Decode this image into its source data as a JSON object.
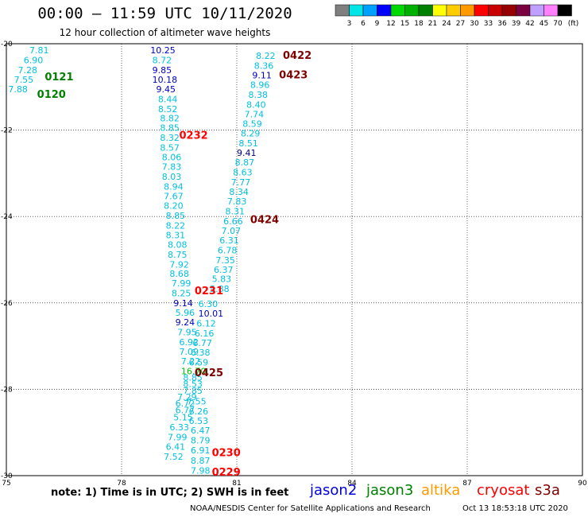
{
  "title": "00:00 – 11:59 UTC 10/11/2020",
  "subtitle": "12 hour collection of altimeter wave heights",
  "colorbar": {
    "labels": [
      "3",
      "6",
      "9",
      "12",
      "15",
      "18",
      "21",
      "24",
      "27",
      "30",
      "33",
      "36",
      "39",
      "42",
      "45",
      "70"
    ],
    "unit": "(ft)",
    "colors": [
      "#7f7f7f",
      "#00e5e5",
      "#00a0ff",
      "#0000ff",
      "#00d800",
      "#00b000",
      "#008000",
      "#ffff00",
      "#ffcc00",
      "#ff9900",
      "#ff0000",
      "#c80000",
      "#960000",
      "#7a0040",
      "#c0a0ff",
      "#ff80ff",
      "#000000"
    ]
  },
  "map": {
    "lon_range": [
      75,
      90
    ],
    "lat_range": [
      -30,
      -20
    ],
    "x_ticks": [
      "75",
      "78",
      "81",
      "84",
      "87",
      "90"
    ],
    "y_ticks": [
      "-20",
      "-22",
      "-24",
      "-26",
      "-28",
      "-30"
    ],
    "grid": true,
    "pass_labels": [
      {
        "text": "0422",
        "lon": 82.2,
        "lat": -20.35,
        "color": "#800000"
      },
      {
        "text": "0423",
        "lon": 82.1,
        "lat": -20.8,
        "color": "#800000"
      },
      {
        "text": "0121",
        "lon": 76.0,
        "lat": -20.85,
        "color": "#008000"
      },
      {
        "text": "0120",
        "lon": 75.8,
        "lat": -21.25,
        "color": "#008000"
      },
      {
        "text": "0232",
        "lon": 79.5,
        "lat": -22.2,
        "color": "#ff0000"
      },
      {
        "text": "0424",
        "lon": 81.35,
        "lat": -24.15,
        "color": "#800000"
      },
      {
        "text": "0231",
        "lon": 79.9,
        "lat": -25.8,
        "color": "#ff0000"
      },
      {
        "text": "0425",
        "lon": 79.9,
        "lat": -27.7,
        "color": "#800000"
      },
      {
        "text": "0230",
        "lon": 80.35,
        "lat": -29.55,
        "color": "#ff0000"
      },
      {
        "text": "0229",
        "lon": 80.35,
        "lat": -30.0,
        "color": "#ff0000"
      }
    ],
    "swh_points": [
      {
        "v": "7.81",
        "lon": 75.6,
        "lat": -20.22,
        "c": "#00c0e0"
      },
      {
        "v": "6.90",
        "lon": 75.45,
        "lat": -20.45,
        "c": "#00c0e0"
      },
      {
        "v": "7.28",
        "lon": 75.3,
        "lat": -20.68,
        "c": "#00c0e0"
      },
      {
        "v": "7.55",
        "lon": 75.2,
        "lat": -20.9,
        "c": "#00c0e0"
      },
      {
        "v": "7.88",
        "lon": 75.05,
        "lat": -21.12,
        "c": "#00c0e0"
      },
      {
        "v": "10.25",
        "lon": 78.75,
        "lat": -20.22,
        "c": "#0000c8"
      },
      {
        "v": "8.72",
        "lon": 78.8,
        "lat": -20.45,
        "c": "#00c0e0"
      },
      {
        "v": "9.85",
        "lon": 78.8,
        "lat": -20.68,
        "c": "#0000c8"
      },
      {
        "v": "10.18",
        "lon": 78.8,
        "lat": -20.9,
        "c": "#0000c8"
      },
      {
        "v": "9.45",
        "lon": 78.9,
        "lat": -21.12,
        "c": "#0000c8"
      },
      {
        "v": "8.44",
        "lon": 78.95,
        "lat": -21.35,
        "c": "#00c0e0"
      },
      {
        "v": "8.52",
        "lon": 78.95,
        "lat": -21.58,
        "c": "#00c0e0"
      },
      {
        "v": "8.82",
        "lon": 79.0,
        "lat": -21.8,
        "c": "#00c0e0"
      },
      {
        "v": "8.85",
        "lon": 79.0,
        "lat": -22.02,
        "c": "#00c0e0"
      },
      {
        "v": "8.32",
        "lon": 79.0,
        "lat": -22.25,
        "c": "#00c0e0"
      },
      {
        "v": "8.57",
        "lon": 79.0,
        "lat": -22.48,
        "c": "#00c0e0"
      },
      {
        "v": "8.06",
        "lon": 79.05,
        "lat": -22.7,
        "c": "#00c0e0"
      },
      {
        "v": "7.83",
        "lon": 79.05,
        "lat": -22.92,
        "c": "#00c0e0"
      },
      {
        "v": "8.03",
        "lon": 79.05,
        "lat": -23.15,
        "c": "#00c0e0"
      },
      {
        "v": "8.94",
        "lon": 79.1,
        "lat": -23.38,
        "c": "#00c0e0"
      },
      {
        "v": "7.67",
        "lon": 79.1,
        "lat": -23.6,
        "c": "#00c0e0"
      },
      {
        "v": "8.20",
        "lon": 79.1,
        "lat": -23.82,
        "c": "#00c0e0"
      },
      {
        "v": "8.85",
        "lon": 79.15,
        "lat": -24.05,
        "c": "#00c0e0"
      },
      {
        "v": "8.22",
        "lon": 79.15,
        "lat": -24.28,
        "c": "#00c0e0"
      },
      {
        "v": "8.31",
        "lon": 79.15,
        "lat": -24.5,
        "c": "#00c0e0"
      },
      {
        "v": "8.08",
        "lon": 79.2,
        "lat": -24.72,
        "c": "#00c0e0"
      },
      {
        "v": "8.75",
        "lon": 79.2,
        "lat": -24.95,
        "c": "#00c0e0"
      },
      {
        "v": "7.92",
        "lon": 79.25,
        "lat": -25.18,
        "c": "#00c0e0"
      },
      {
        "v": "8.68",
        "lon": 79.25,
        "lat": -25.4,
        "c": "#00c0e0"
      },
      {
        "v": "7.99",
        "lon": 79.3,
        "lat": -25.62,
        "c": "#00c0e0"
      },
      {
        "v": "8.25",
        "lon": 79.3,
        "lat": -25.85,
        "c": "#00c0e0"
      },
      {
        "v": "9.14",
        "lon": 79.35,
        "lat": -26.08,
        "c": "#0000c8"
      },
      {
        "v": "5.96",
        "lon": 79.4,
        "lat": -26.3,
        "c": "#00c0e0"
      },
      {
        "v": "9.24",
        "lon": 79.4,
        "lat": -26.52,
        "c": "#0000c8"
      },
      {
        "v": "7.95",
        "lon": 79.45,
        "lat": -26.75,
        "c": "#00c0e0"
      },
      {
        "v": "6.92",
        "lon": 79.5,
        "lat": -26.98,
        "c": "#00c0e0"
      },
      {
        "v": "7.09",
        "lon": 79.5,
        "lat": -27.2,
        "c": "#00c0e0"
      },
      {
        "v": "7.22",
        "lon": 79.55,
        "lat": -27.42,
        "c": "#00c0e0"
      },
      {
        "v": "16.70",
        "lon": 79.55,
        "lat": -27.65,
        "c": "#00c000"
      },
      {
        "v": "8.85",
        "lon": 79.6,
        "lat": -27.8,
        "c": "#00c0e0"
      },
      {
        "v": "8.53",
        "lon": 79.6,
        "lat": -27.95,
        "c": "#00c0e0"
      },
      {
        "v": "7.85",
        "lon": 79.6,
        "lat": -28.1,
        "c": "#00c0e0"
      },
      {
        "v": "7.29",
        "lon": 79.45,
        "lat": -28.25,
        "c": "#00c0e0"
      },
      {
        "v": "6.72",
        "lon": 79.4,
        "lat": -28.4,
        "c": "#00c0e0"
      },
      {
        "v": "6.77",
        "lon": 79.4,
        "lat": -28.55,
        "c": "#00c0e0"
      },
      {
        "v": "5.15",
        "lon": 79.35,
        "lat": -28.72,
        "c": "#00c0e0"
      },
      {
        "v": "6.33",
        "lon": 79.25,
        "lat": -28.95,
        "c": "#00c0e0"
      },
      {
        "v": "7.99",
        "lon": 79.2,
        "lat": -29.18,
        "c": "#00c0e0"
      },
      {
        "v": "6.41",
        "lon": 79.15,
        "lat": -29.4,
        "c": "#00c0e0"
      },
      {
        "v": "7.52",
        "lon": 79.1,
        "lat": -29.63,
        "c": "#00c0e0"
      },
      {
        "v": "8.22",
        "lon": 81.5,
        "lat": -20.35,
        "c": "#00c0e0"
      },
      {
        "v": "8.36",
        "lon": 81.45,
        "lat": -20.58,
        "c": "#00c0e0"
      },
      {
        "v": "9.11",
        "lon": 81.4,
        "lat": -20.8,
        "c": "#0000c8"
      },
      {
        "v": "8.96",
        "lon": 81.35,
        "lat": -21.02,
        "c": "#00c0e0"
      },
      {
        "v": "8.38",
        "lon": 81.3,
        "lat": -21.25,
        "c": "#00c0e0"
      },
      {
        "v": "8.40",
        "lon": 81.25,
        "lat": -21.48,
        "c": "#00c0e0"
      },
      {
        "v": "7.74",
        "lon": 81.2,
        "lat": -21.7,
        "c": "#00c0e0"
      },
      {
        "v": "8.59",
        "lon": 81.15,
        "lat": -21.92,
        "c": "#00c0e0"
      },
      {
        "v": "8.29",
        "lon": 81.1,
        "lat": -22.15,
        "c": "#00c0e0"
      },
      {
        "v": "8.51",
        "lon": 81.05,
        "lat": -22.38,
        "c": "#00c0e0"
      },
      {
        "v": "9.41",
        "lon": 81.0,
        "lat": -22.6,
        "c": "#000080"
      },
      {
        "v": "8.87",
        "lon": 80.95,
        "lat": -22.82,
        "c": "#00c0e0"
      },
      {
        "v": "8.63",
        "lon": 80.9,
        "lat": -23.05,
        "c": "#00c0e0"
      },
      {
        "v": "7.77",
        "lon": 80.85,
        "lat": -23.28,
        "c": "#00c0e0"
      },
      {
        "v": "8.34",
        "lon": 80.8,
        "lat": -23.5,
        "c": "#00c0e0"
      },
      {
        "v": "7.83",
        "lon": 80.75,
        "lat": -23.72,
        "c": "#00c0e0"
      },
      {
        "v": "8.31",
        "lon": 80.7,
        "lat": -23.95,
        "c": "#00c0e0"
      },
      {
        "v": "6.66",
        "lon": 80.65,
        "lat": -24.18,
        "c": "#00c0e0"
      },
      {
        "v": "7.07",
        "lon": 80.6,
        "lat": -24.4,
        "c": "#00c0e0"
      },
      {
        "v": "6.31",
        "lon": 80.55,
        "lat": -24.62,
        "c": "#00c0e0"
      },
      {
        "v": "6.78",
        "lon": 80.5,
        "lat": -24.85,
        "c": "#00c0e0"
      },
      {
        "v": "7.35",
        "lon": 80.45,
        "lat": -25.08,
        "c": "#00c0e0"
      },
      {
        "v": "6.37",
        "lon": 80.4,
        "lat": -25.3,
        "c": "#00c0e0"
      },
      {
        "v": "5.83",
        "lon": 80.35,
        "lat": -25.52,
        "c": "#00c0e0"
      },
      {
        "v": "5.88",
        "lon": 80.3,
        "lat": -25.75,
        "c": "#00c0e0"
      },
      {
        "v": "6.30",
        "lon": 80.0,
        "lat": -26.1,
        "c": "#00c0e0"
      },
      {
        "v": "10.01",
        "lon": 80.0,
        "lat": -26.32,
        "c": "#0000c8"
      },
      {
        "v": "6.12",
        "lon": 79.95,
        "lat": -26.55,
        "c": "#00c0e0"
      },
      {
        "v": "6.16",
        "lon": 79.9,
        "lat": -26.78,
        "c": "#00c0e0"
      },
      {
        "v": "6.77",
        "lon": 79.85,
        "lat": -27.0,
        "c": "#00c0e0"
      },
      {
        "v": "6.38",
        "lon": 79.8,
        "lat": -27.22,
        "c": "#00c0e0"
      },
      {
        "v": "6.59",
        "lon": 79.75,
        "lat": -27.45,
        "c": "#00c0e0"
      },
      {
        "v": "7.55",
        "lon": 79.7,
        "lat": -28.35,
        "c": "#00c0e0"
      },
      {
        "v": "6.26",
        "lon": 79.75,
        "lat": -28.58,
        "c": "#00c0e0"
      },
      {
        "v": "6.53",
        "lon": 79.75,
        "lat": -28.8,
        "c": "#00c0e0"
      },
      {
        "v": "6.47",
        "lon": 79.8,
        "lat": -29.02,
        "c": "#00c0e0"
      },
      {
        "v": "8.79",
        "lon": 79.8,
        "lat": -29.25,
        "c": "#00c0e0"
      },
      {
        "v": "6.91",
        "lon": 79.8,
        "lat": -29.48,
        "c": "#00c0e0"
      },
      {
        "v": "8.87",
        "lon": 79.8,
        "lat": -29.72,
        "c": "#00c0e0"
      },
      {
        "v": "7.98",
        "lon": 79.8,
        "lat": -29.95,
        "c": "#00c0e0"
      }
    ]
  },
  "note": "note:  1) Time is in UTC;  2) SWH is in feet",
  "legend": [
    {
      "name": "jason2",
      "color": "#0000e0"
    },
    {
      "name": "jason3",
      "color": "#008000"
    },
    {
      "name": "altika",
      "color": "#ff9900"
    },
    {
      "name": "cryosat",
      "color": "#ff0000"
    },
    {
      "name": "s3a",
      "color": "#800000"
    }
  ],
  "credit": "NOAA/NESDIS Center for Satellite Applications and Research",
  "timestamp": "Oct 13 18:53:18 UTC 2020"
}
